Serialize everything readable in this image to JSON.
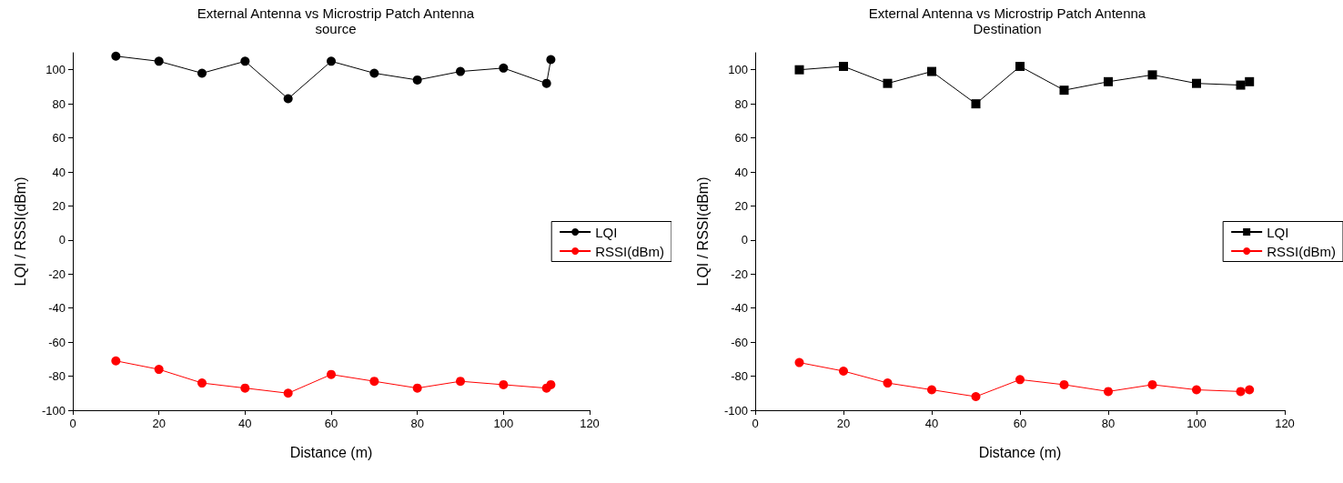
{
  "chart_data": [
    {
      "type": "line",
      "title": "External Antenna vs Microstrip Patch Antenna",
      "subtitle": "source",
      "xlabel": "Distance (m)",
      "ylabel": "LQI / RSSI(dBm)",
      "x": [
        10,
        20,
        30,
        40,
        50,
        60,
        70,
        80,
        90,
        100,
        110,
        111
      ],
      "series": [
        {
          "name": "LQI",
          "color": "#000000",
          "marker": "circle",
          "values": [
            108,
            105,
            98,
            105,
            83,
            105,
            98,
            94,
            99,
            101,
            92,
            106
          ]
        },
        {
          "name": "RSSI(dBm)",
          "color": "#ff0000",
          "marker": "circle",
          "values": [
            -71,
            -76,
            -84,
            -87,
            -90,
            -79,
            -83,
            -87,
            -83,
            -85,
            -87,
            -85
          ]
        }
      ],
      "xlim": [
        0,
        120
      ],
      "xticks": [
        0,
        20,
        40,
        60,
        80,
        100,
        120
      ],
      "ylim": [
        -100,
        110
      ],
      "yticks": [
        -100,
        -80,
        -60,
        -40,
        -20,
        0,
        20,
        40,
        60,
        80,
        100
      ],
      "grid": false,
      "legend": "right",
      "line_style": "solid"
    },
    {
      "type": "line",
      "title": "External Antenna vs Microstrip Patch Antenna",
      "subtitle": "Destination",
      "xlabel": "Distance (m)",
      "ylabel": "LQI / RSSI(dBm)",
      "x": [
        10,
        20,
        30,
        40,
        50,
        60,
        70,
        80,
        90,
        100,
        110,
        112
      ],
      "series": [
        {
          "name": "LQI",
          "color": "#000000",
          "marker": "square",
          "values": [
            100,
            102,
            92,
            99,
            80,
            102,
            88,
            93,
            97,
            92,
            91,
            93
          ]
        },
        {
          "name": "RSSI(dBm)",
          "color": "#ff0000",
          "marker": "circle",
          "values": [
            -72,
            -77,
            -84,
            -88,
            -92,
            -82,
            -85,
            -89,
            -85,
            -88,
            -89,
            -88
          ]
        }
      ],
      "xlim": [
        0,
        120
      ],
      "xticks": [
        0,
        20,
        40,
        60,
        80,
        100,
        120
      ],
      "ylim": [
        -100,
        110
      ],
      "yticks": [
        -100,
        -80,
        -60,
        -40,
        -20,
        0,
        20,
        40,
        60,
        80,
        100
      ],
      "grid": false,
      "legend": "right",
      "line_style": "solid"
    }
  ]
}
